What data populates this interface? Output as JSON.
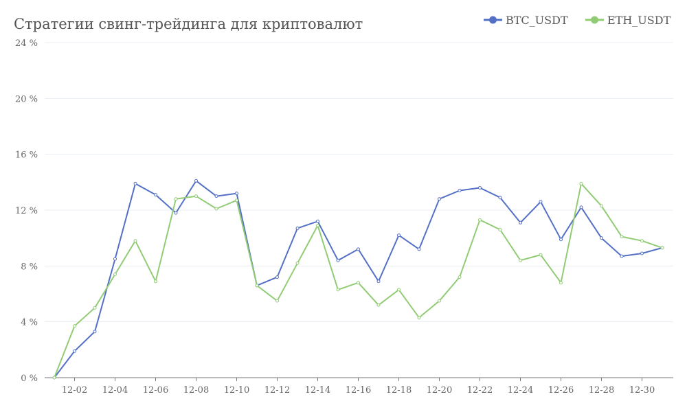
{
  "chart_data": {
    "type": "line",
    "title": "Стратегии свинг-трейдинга для криптовалют",
    "xlabel": "",
    "ylabel": "",
    "x": [
      "12-01",
      "12-02",
      "12-03",
      "12-04",
      "12-05",
      "12-06",
      "12-07",
      "12-08",
      "12-09",
      "12-10",
      "12-11",
      "12-12",
      "12-13",
      "12-14",
      "12-15",
      "12-16",
      "12-17",
      "12-18",
      "12-19",
      "12-20",
      "12-21",
      "12-22",
      "12-23",
      "12-24",
      "12-25",
      "12-26",
      "12-27",
      "12-28",
      "12-29",
      "12-30",
      "12-31"
    ],
    "x_tick_labels": [
      "12-02",
      "12-04",
      "12-06",
      "12-08",
      "12-10",
      "12-12",
      "12-14",
      "12-16",
      "12-18",
      "12-20",
      "12-22",
      "12-24",
      "12-26",
      "12-28",
      "12-30"
    ],
    "ylim": [
      0,
      24
    ],
    "y_ticks": [
      0,
      4,
      8,
      12,
      16,
      20,
      24
    ],
    "y_unit": " %",
    "grid": true,
    "legend_position": "top-right",
    "series": [
      {
        "name": "BTC_USDT",
        "color": "#5470c6",
        "values": [
          0,
          1.9,
          3.3,
          8.5,
          13.9,
          13.1,
          11.8,
          14.1,
          13.0,
          13.2,
          6.6,
          7.2,
          10.7,
          11.2,
          8.4,
          9.2,
          6.9,
          10.2,
          9.2,
          12.8,
          13.4,
          13.6,
          12.9,
          11.1,
          12.6,
          9.9,
          12.2,
          10.0,
          8.7,
          8.9,
          9.3
        ]
      },
      {
        "name": "ETH_USDT",
        "color": "#91cc75",
        "values": [
          0,
          3.7,
          5.0,
          7.4,
          9.8,
          6.9,
          12.8,
          13.0,
          12.1,
          12.7,
          6.6,
          5.5,
          8.2,
          10.9,
          6.3,
          6.8,
          5.2,
          6.3,
          4.3,
          5.5,
          7.2,
          11.3,
          10.6,
          8.4,
          8.8,
          6.8,
          13.9,
          12.3,
          10.1,
          9.8,
          9.3
        ]
      }
    ]
  }
}
